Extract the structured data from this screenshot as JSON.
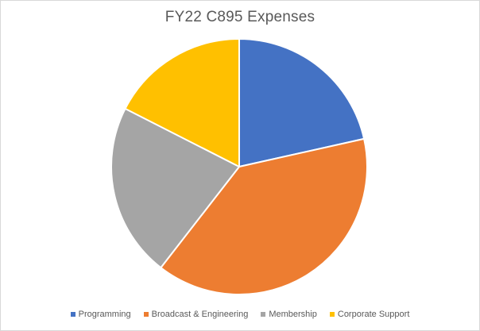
{
  "chart_data": {
    "type": "pie",
    "title": "FY22 C895 Expenses",
    "categories": [
      "Programming",
      "Broadcast & Engineering",
      "Membership",
      "Corporate Support"
    ],
    "values": [
      21.5,
      39.0,
      22.0,
      17.5
    ],
    "colors": [
      "#4472C4",
      "#ED7D31",
      "#A5A5A5",
      "#FFC000"
    ],
    "start_angle_deg": 0,
    "direction": "clockwise",
    "legend_position": "bottom"
  }
}
